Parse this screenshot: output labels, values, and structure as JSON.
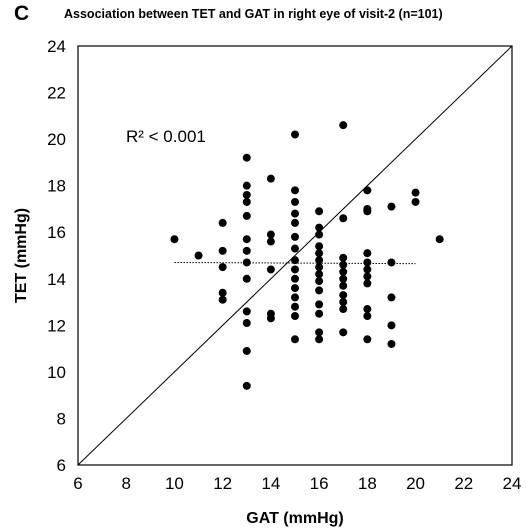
{
  "chart_data": {
    "type": "scatter",
    "panel_label": "C",
    "title": "Association between TET and GAT in right eye of visit-2 (n=101)",
    "xlabel": "GAT (mmHg)",
    "ylabel": "TET  (mmHg)",
    "xlim": [
      6,
      24
    ],
    "ylim": [
      6,
      24
    ],
    "xticks": [
      "6",
      "8",
      "10",
      "12",
      "14",
      "16",
      "18",
      "20",
      "22",
      "24"
    ],
    "yticks": [
      "6",
      "8",
      "10",
      "12",
      "14",
      "16",
      "18",
      "20",
      "22",
      "24"
    ],
    "annotation": "R² < 0.001",
    "identity_line": true,
    "trendline": {
      "style": "dotted",
      "x": [
        10,
        20
      ],
      "y": [
        14.7,
        14.65
      ]
    },
    "grid": false,
    "legend": "none",
    "points": [
      {
        "x": 10,
        "y": 15.7
      },
      {
        "x": 11,
        "y": 15
      },
      {
        "x": 12,
        "y": 16.4
      },
      {
        "x": 12,
        "y": 15.2
      },
      {
        "x": 12,
        "y": 14.5
      },
      {
        "x": 12,
        "y": 13.4
      },
      {
        "x": 12,
        "y": 13.1
      },
      {
        "x": 13,
        "y": 19.2
      },
      {
        "x": 13,
        "y": 18
      },
      {
        "x": 13,
        "y": 17.6
      },
      {
        "x": 13,
        "y": 17.3
      },
      {
        "x": 13,
        "y": 16.7
      },
      {
        "x": 13,
        "y": 15.7
      },
      {
        "x": 13,
        "y": 15.2
      },
      {
        "x": 13,
        "y": 14.7
      },
      {
        "x": 13,
        "y": 14
      },
      {
        "x": 13,
        "y": 12.6
      },
      {
        "x": 13,
        "y": 12.1
      },
      {
        "x": 13,
        "y": 10.9
      },
      {
        "x": 13,
        "y": 9.4
      },
      {
        "x": 14,
        "y": 18.3
      },
      {
        "x": 14,
        "y": 15.9
      },
      {
        "x": 14,
        "y": 15.6
      },
      {
        "x": 14,
        "y": 14.4
      },
      {
        "x": 14,
        "y": 12.5
      },
      {
        "x": 14,
        "y": 12.3
      },
      {
        "x": 15,
        "y": 20.2
      },
      {
        "x": 15,
        "y": 17.8
      },
      {
        "x": 15,
        "y": 17.3
      },
      {
        "x": 15,
        "y": 16.8
      },
      {
        "x": 15,
        "y": 16.4
      },
      {
        "x": 15,
        "y": 15.8
      },
      {
        "x": 15,
        "y": 15.3
      },
      {
        "x": 15,
        "y": 14.8
      },
      {
        "x": 15,
        "y": 14.4
      },
      {
        "x": 15,
        "y": 14
      },
      {
        "x": 15,
        "y": 13.6
      },
      {
        "x": 15,
        "y": 13.2
      },
      {
        "x": 15,
        "y": 12.8
      },
      {
        "x": 15,
        "y": 12.4
      },
      {
        "x": 15,
        "y": 11.4
      },
      {
        "x": 16,
        "y": 16.9
      },
      {
        "x": 16,
        "y": 16.2
      },
      {
        "x": 16,
        "y": 15.9
      },
      {
        "x": 16,
        "y": 15.4
      },
      {
        "x": 16,
        "y": 15.1
      },
      {
        "x": 16,
        "y": 14.8
      },
      {
        "x": 16,
        "y": 14.5
      },
      {
        "x": 16,
        "y": 14.2
      },
      {
        "x": 16,
        "y": 13.9
      },
      {
        "x": 16,
        "y": 13.5
      },
      {
        "x": 16,
        "y": 12.9
      },
      {
        "x": 16,
        "y": 12.5
      },
      {
        "x": 16,
        "y": 11.7
      },
      {
        "x": 16,
        "y": 11.4
      },
      {
        "x": 17,
        "y": 20.6
      },
      {
        "x": 17,
        "y": 16.6
      },
      {
        "x": 17,
        "y": 14.9
      },
      {
        "x": 17,
        "y": 14.6
      },
      {
        "x": 17,
        "y": 14.3
      },
      {
        "x": 17,
        "y": 14
      },
      {
        "x": 17,
        "y": 13.7
      },
      {
        "x": 17,
        "y": 13.3
      },
      {
        "x": 17,
        "y": 13
      },
      {
        "x": 17,
        "y": 12.7
      },
      {
        "x": 17,
        "y": 11.7
      },
      {
        "x": 18,
        "y": 17.8
      },
      {
        "x": 18,
        "y": 17
      },
      {
        "x": 18,
        "y": 16.9
      },
      {
        "x": 18,
        "y": 15.1
      },
      {
        "x": 18,
        "y": 14.7
      },
      {
        "x": 18,
        "y": 14.4
      },
      {
        "x": 18,
        "y": 14.1
      },
      {
        "x": 18,
        "y": 13.8
      },
      {
        "x": 18,
        "y": 12.7
      },
      {
        "x": 18,
        "y": 12.4
      },
      {
        "x": 18,
        "y": 11.4
      },
      {
        "x": 19,
        "y": 17.1
      },
      {
        "x": 19,
        "y": 14.7
      },
      {
        "x": 19,
        "y": 13.2
      },
      {
        "x": 19,
        "y": 12
      },
      {
        "x": 19,
        "y": 11.2
      },
      {
        "x": 20,
        "y": 17.7
      },
      {
        "x": 20,
        "y": 17.3
      },
      {
        "x": 21,
        "y": 15.7
      }
    ]
  }
}
